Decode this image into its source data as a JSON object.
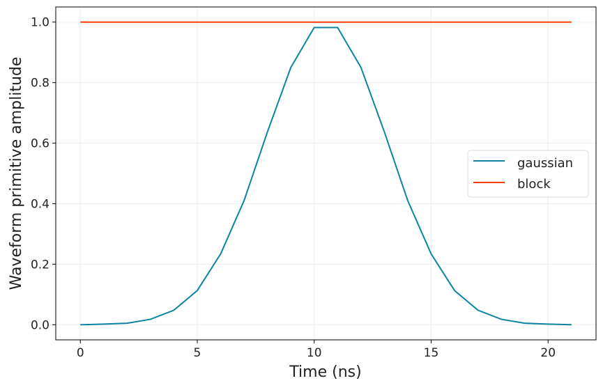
{
  "chart_data": {
    "type": "line",
    "title": "",
    "xlabel": "Time (ns)",
    "ylabel": "Waveform primitive amplitude",
    "xlim": [
      -1.05,
      22.05
    ],
    "ylim": [
      -0.05,
      1.05
    ],
    "xticks": [
      0,
      5,
      10,
      15,
      20
    ],
    "xtick_labels": [
      "0",
      "5",
      "10",
      "15",
      "20"
    ],
    "yticks": [
      0,
      0.2,
      0.4,
      0.6,
      0.8,
      1.0
    ],
    "ytick_labels": [
      "0.0",
      "0.2",
      "0.4",
      "0.6",
      "0.8",
      "1.0"
    ],
    "grid": true,
    "legend_position": "center-right",
    "series": [
      {
        "name": "gaussian",
        "color": "#0a84a0",
        "x": [
          0,
          1,
          2,
          3,
          4,
          5,
          6,
          7,
          8,
          9,
          10,
          11,
          12,
          13,
          14,
          15,
          16,
          17,
          18,
          19,
          20,
          21
        ],
        "y": [
          0.0,
          0.002,
          0.005,
          0.018,
          0.048,
          0.113,
          0.234,
          0.41,
          0.637,
          0.85,
          0.982,
          0.982,
          0.85,
          0.637,
          0.41,
          0.234,
          0.113,
          0.048,
          0.018,
          0.005,
          0.002,
          0.0
        ]
      },
      {
        "name": "block",
        "color": "#ff3c00",
        "x": [
          0,
          21
        ],
        "y": [
          1.0,
          1.0
        ]
      }
    ]
  }
}
